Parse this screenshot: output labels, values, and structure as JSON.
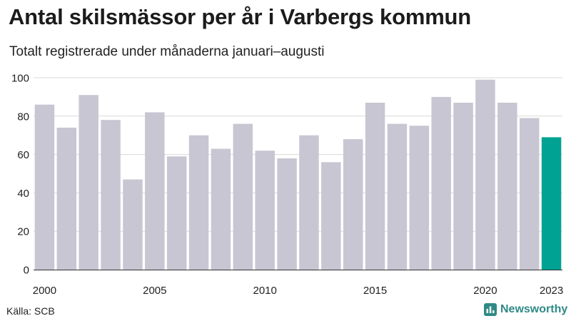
{
  "header": {
    "title": "Antal skilsmässor per år i Varbergs kommun",
    "subtitle": "Totalt registrerade under månaderna januari–augusti"
  },
  "footer": {
    "source": "Källa: SCB",
    "brand": "Newsworthy"
  },
  "colors": {
    "bar": "#c8c6d2",
    "highlight": "#00a393",
    "grid": "#d9d9d9",
    "brand": "#2f8a86"
  },
  "chart_data": {
    "type": "bar",
    "title": "Antal skilsmässor per år i Varbergs kommun",
    "subtitle": "Totalt registrerade under månaderna januari–augusti",
    "categories": [
      2000,
      2001,
      2002,
      2003,
      2004,
      2005,
      2006,
      2007,
      2008,
      2009,
      2010,
      2011,
      2012,
      2013,
      2014,
      2015,
      2016,
      2017,
      2018,
      2019,
      2020,
      2021,
      2022,
      2023
    ],
    "values": [
      86,
      74,
      91,
      78,
      47,
      82,
      59,
      70,
      63,
      76,
      62,
      58,
      70,
      56,
      68,
      87,
      76,
      75,
      90,
      87,
      99,
      87,
      79,
      69
    ],
    "highlight": 2023,
    "x_tick_labels": [
      "2000",
      "2005",
      "2010",
      "2015",
      "2020",
      "2023"
    ],
    "y_ticks": [
      0,
      20,
      40,
      60,
      80,
      100
    ],
    "ylim": [
      0,
      100
    ],
    "xlabel": "",
    "ylabel": "",
    "grid": true
  }
}
